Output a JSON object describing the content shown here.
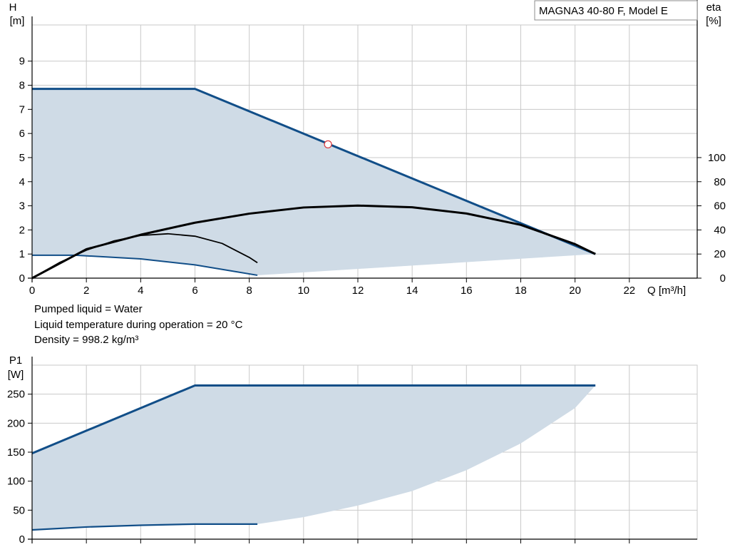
{
  "header": {
    "model_label": "MAGNA3 40-80 F, Model E"
  },
  "info_lines": {
    "liquid": "Pumped liquid = Water",
    "temperature": "Liquid temperature during operation = 20 °C",
    "density": "Density = 998.2 kg/m³"
  },
  "colors": {
    "curve_blue": "#114e88",
    "envelope_fill": "#cfdbe6",
    "efficiency_black": "#000000",
    "grid": "#c9c9c9",
    "duty_point": "#d9373c"
  },
  "chart_data": [
    {
      "type": "area",
      "title": "",
      "x_axis": {
        "label": "Q [m³/h]",
        "range": [
          0,
          24.5
        ],
        "ticks": [
          0,
          2,
          4,
          6,
          8,
          10,
          12,
          14,
          16,
          18,
          20,
          22
        ]
      },
      "y_axis": {
        "label_line1": "H",
        "label_line2": "[m]",
        "range": [
          0,
          10.5
        ],
        "ticks": [
          0,
          1,
          2,
          3,
          4,
          5,
          6,
          7,
          8,
          9
        ]
      },
      "y2_axis": {
        "label_line1": "eta",
        "label_line2": "[%]",
        "range": [
          0,
          100
        ],
        "ticks": [
          0,
          20,
          40,
          60,
          80,
          100
        ],
        "maps_to_h_per_100": 5
      },
      "grid": true,
      "series": [
        {
          "role": "max-head-curve",
          "x": [
            0,
            6,
            20.75
          ],
          "y": [
            7.85,
            7.85,
            1.0
          ]
        },
        {
          "role": "min-head-curve",
          "x": [
            0,
            1.6,
            4.0,
            6.0,
            8.3
          ],
          "y": [
            0.95,
            0.95,
            0.8,
            0.55,
            0.12
          ]
        },
        {
          "role": "envelope-lower-edge",
          "x": [
            8.3,
            20.75
          ],
          "y": [
            0.12,
            1.0
          ]
        },
        {
          "role": "efficiency-max",
          "x": [
            0,
            2,
            4,
            6,
            8,
            10,
            12,
            14,
            16,
            18,
            20,
            20.75
          ],
          "y": [
            0,
            24,
            36,
            46,
            53.5,
            58.6,
            60.2,
            58.8,
            53.6,
            44.2,
            28.2,
            20
          ]
        },
        {
          "role": "efficiency-min",
          "x": [
            0,
            1,
            2,
            3,
            4,
            5,
            6,
            7,
            8,
            8.3
          ],
          "y": [
            0,
            12.8,
            23.2,
            30.8,
            35.4,
            36.8,
            34.8,
            28.8,
            17.2,
            12.8
          ]
        }
      ],
      "duty_point": {
        "x": 10.9,
        "y": 5.55
      }
    },
    {
      "type": "area",
      "title": "",
      "x_axis": {
        "label": "",
        "range": [
          0,
          24.5
        ],
        "ticks": [
          0,
          2,
          4,
          6,
          8,
          10,
          12,
          14,
          16,
          18,
          20,
          22
        ]
      },
      "y_axis": {
        "label_line1": "P1",
        "label_line2": "[W]",
        "range": [
          0,
          300
        ],
        "ticks": [
          0,
          50,
          100,
          150,
          200,
          250
        ]
      },
      "grid": true,
      "series": [
        {
          "role": "max-power-curve",
          "x": [
            0,
            6,
            20.75
          ],
          "y": [
            148,
            265,
            265
          ]
        },
        {
          "role": "min-power-curve",
          "x": [
            0,
            2,
            4,
            6,
            8.3
          ],
          "y": [
            16,
            21,
            24,
            26,
            26
          ]
        },
        {
          "role": "envelope-lower-edge",
          "x": [
            8.3,
            10,
            12,
            14,
            16,
            18,
            20,
            20.75
          ],
          "y": [
            26,
            38,
            58,
            83,
            119,
            165,
            226,
            265
          ]
        }
      ]
    }
  ]
}
